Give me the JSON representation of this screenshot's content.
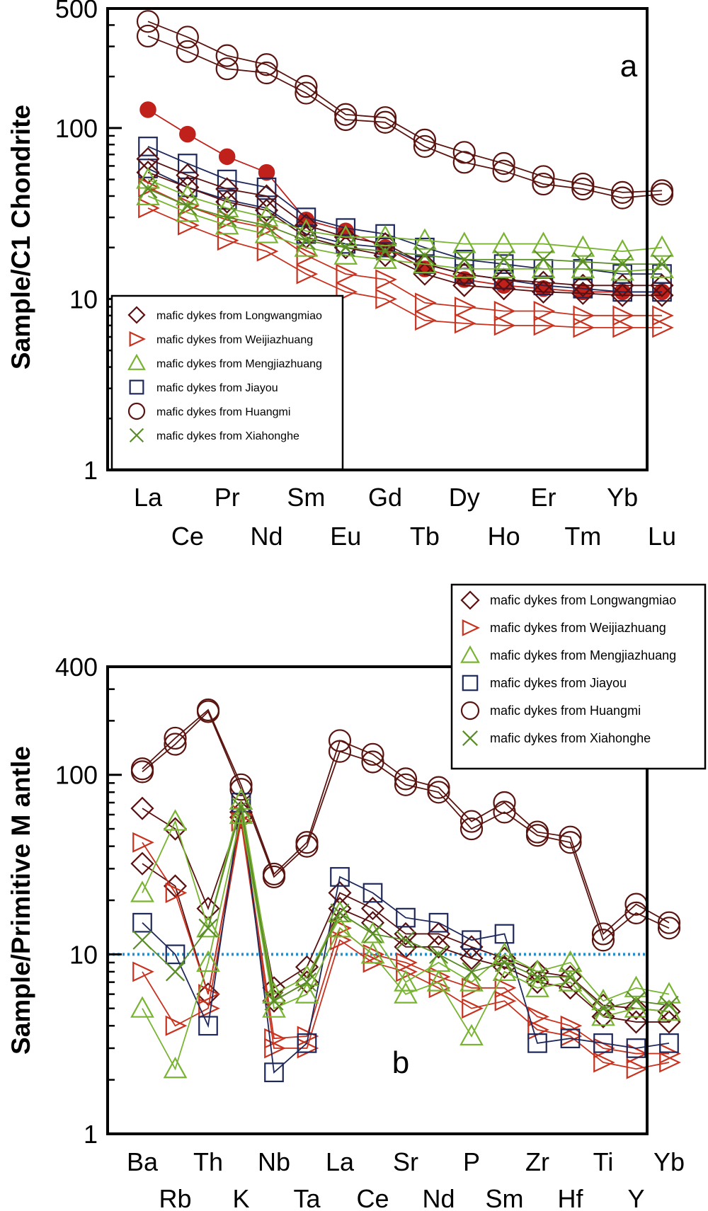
{
  "legend_entries": [
    {
      "label": "mafic dykes from Longwangmiao",
      "marker": "diamond",
      "color": "#5a1010"
    },
    {
      "label": "mafic dykes from Weijiazhuang",
      "marker": "triangle-right",
      "color": "#c8321e"
    },
    {
      "label": "mafic dykes from Mengjiazhuang",
      "marker": "triangle-up",
      "color": "#78b432"
    },
    {
      "label": "mafic dykes from Jiayou",
      "marker": "square",
      "color": "#1e285a"
    },
    {
      "label": "mafic dykes from Huangmi",
      "marker": "circle",
      "color": "#5a1410"
    },
    {
      "label": "mafic dykes from Xiahonghe",
      "marker": "x",
      "color": "#5a8c28"
    }
  ],
  "chart_data": [
    {
      "type": "line",
      "panel_label": "a",
      "title": "",
      "ylabel": "Sample/C1 Chondrite",
      "xlabel": "",
      "yscale": "log",
      "ylim": [
        1,
        500
      ],
      "yticks": [
        "1",
        "10",
        "100",
        "500"
      ],
      "categories": [
        "La",
        "Ce",
        "Pr",
        "Nd",
        "Sm",
        "Eu",
        "Gd",
        "Tb",
        "Dy",
        "Ho",
        "Er",
        "Tm",
        "Yb",
        "Lu"
      ],
      "legend_position": "lower-left",
      "series": [
        {
          "name": "mafic dykes from Huangmi",
          "marker": "circle",
          "color": "#5a1410",
          "values": [
            420,
            340,
            265,
            235,
            175,
            120,
            115,
            85,
            72,
            62,
            52,
            47,
            42,
            43
          ]
        },
        {
          "name": "mafic dykes from Huangmi",
          "marker": "circle",
          "color": "#5a1410",
          "values": [
            345,
            280,
            222,
            210,
            160,
            112,
            108,
            78,
            63,
            56,
            47,
            44,
            39,
            41
          ]
        },
        {
          "marker": "filled-circle",
          "color": "#c0211a",
          "values": [
            128,
            92,
            68,
            55,
            29,
            25,
            20,
            15,
            13,
            12,
            11.5,
            11,
            11,
            11
          ]
        },
        {
          "name": "mafic dykes from Jiayou",
          "marker": "square",
          "color": "#1e285a",
          "values": [
            78,
            62,
            50,
            45,
            30,
            26,
            24,
            20,
            17,
            16,
            15,
            15,
            14,
            14
          ]
        },
        {
          "name": "mafic dykes from Jiayou",
          "marker": "square",
          "color": "#1e285a",
          "values": [
            58,
            45,
            38,
            34,
            24,
            21,
            20,
            16,
            14,
            13,
            12,
            11.5,
            11,
            11
          ]
        },
        {
          "name": "mafic dykes from Longwangmiao",
          "marker": "diamond",
          "color": "#5a1010",
          "values": [
            66,
            53,
            44,
            40,
            27,
            23,
            21,
            16,
            14,
            13,
            12.5,
            12,
            12,
            12
          ]
        },
        {
          "name": "mafic dykes from Longwangmiao",
          "marker": "diamond",
          "color": "#5a1010",
          "values": [
            55,
            45,
            37,
            33,
            23,
            20,
            18,
            14,
            12,
            11.5,
            11,
            10.8,
            10.5,
            10.5
          ]
        },
        {
          "name": "mafic dykes from Weijiazhuang",
          "marker": "triangle-right",
          "color": "#c8321e",
          "values": [
            45,
            35,
            29,
            26,
            18,
            14,
            13,
            9.5,
            9,
            8.5,
            8.5,
            8,
            8,
            8
          ]
        },
        {
          "name": "mafic dykes from Weijiazhuang",
          "marker": "triangle-right",
          "color": "#c8321e",
          "values": [
            34,
            27,
            22,
            19,
            14,
            11,
            10,
            7.5,
            7.2,
            7,
            7,
            6.8,
            6.8,
            6.8
          ]
        },
        {
          "name": "mafic dykes from Mengjiazhuang",
          "marker": "triangle-up",
          "color": "#78b432",
          "values": [
            50,
            40,
            34,
            30,
            25,
            23,
            23,
            22,
            21,
            21,
            21,
            20,
            19,
            20
          ]
        },
        {
          "name": "mafic dykes from Mengjiazhuang",
          "marker": "triangle-up",
          "color": "#78b432",
          "values": [
            40,
            32,
            27,
            24,
            20,
            18,
            17,
            16,
            15,
            15,
            15,
            15,
            14.5,
            15
          ]
        },
        {
          "name": "mafic dykes from Xiahonghe",
          "marker": "x",
          "color": "#5a8c28",
          "values": [
            44,
            35,
            30,
            27,
            22,
            20,
            19,
            18,
            17,
            17,
            17,
            16.5,
            16,
            16
          ]
        }
      ]
    },
    {
      "type": "line",
      "panel_label": "b",
      "title": "",
      "ylabel": "Sample/Primitive M antle",
      "xlabel": "",
      "yscale": "log",
      "ylim": [
        1,
        400
      ],
      "yticks": [
        "1",
        "10",
        "100",
        "400"
      ],
      "categories": [
        "Ba",
        "Rb",
        "Th",
        "K",
        "Nb",
        "Ta",
        "La",
        "Ce",
        "Sr",
        "Nd",
        "P",
        "Sm",
        "Zr",
        "Hf",
        "Ti",
        "Y",
        "Yb"
      ],
      "reference_line": {
        "y": 10,
        "style": "dotted",
        "color": "#1e90d8"
      },
      "legend_position": "top-right",
      "series": [
        {
          "name": "mafic dykes from Huangmi",
          "marker": "circle",
          "color": "#5a1410",
          "values": [
            108,
            160,
            230,
            88,
            28,
            42,
            155,
            130,
            95,
            85,
            55,
            70,
            48,
            45,
            13,
            19,
            15
          ]
        },
        {
          "name": "mafic dykes from Huangmi",
          "marker": "circle",
          "color": "#5a1410",
          "values": [
            104,
            148,
            225,
            83,
            27,
            40,
            135,
            118,
            88,
            80,
            50,
            62,
            46,
            42,
            12,
            17,
            14
          ]
        },
        {
          "name": "mafic dykes from Longwangmiao",
          "marker": "diamond",
          "color": "#5a1010",
          "values": [
            65,
            50,
            18,
            62,
            6.5,
            8.5,
            22,
            18,
            13,
            13,
            11,
            9.5,
            8,
            7.5,
            5.2,
            5,
            4.8
          ]
        },
        {
          "name": "mafic dykes from Longwangmiao",
          "marker": "diamond",
          "color": "#5a1010",
          "values": [
            32,
            24,
            6,
            58,
            5.5,
            7,
            18,
            15,
            11,
            11,
            9.5,
            8.5,
            7,
            6.5,
            4.5,
            4.2,
            4.2
          ]
        },
        {
          "name": "mafic dykes from Weijiazhuang",
          "marker": "triangle-right",
          "color": "#c8321e",
          "values": [
            42,
            22,
            6,
            60,
            3.4,
            3.5,
            14,
            10,
            9,
            7.5,
            6.5,
            6.5,
            4.5,
            4,
            3,
            2.8,
            2.8
          ]
        },
        {
          "name": "mafic dykes from Weijiazhuang",
          "marker": "triangle-right",
          "color": "#c8321e",
          "values": [
            8,
            4,
            5,
            55,
            3,
            3,
            12,
            9,
            8,
            6.5,
            5,
            5.5,
            3.8,
            3.5,
            2.5,
            2.3,
            2.5
          ]
        },
        {
          "name": "mafic dykes from Jiayou",
          "marker": "square",
          "color": "#1e285a",
          "values": [
            15,
            10,
            4,
            70,
            2.2,
            3.2,
            27,
            22,
            16,
            15,
            12,
            13,
            3.2,
            3.4,
            3.2,
            3,
            3.2
          ]
        },
        {
          "name": "mafic dykes from Mengjiazhuang",
          "marker": "triangle-up",
          "color": "#78b432",
          "values": [
            22,
            55,
            14,
            72,
            6,
            7.5,
            17,
            13,
            7,
            9,
            7,
            10,
            8,
            9,
            5.5,
            6.5,
            6
          ]
        },
        {
          "name": "mafic dykes from Mengjiazhuang",
          "marker": "triangle-up",
          "color": "#78b432",
          "values": [
            5,
            2.3,
            9,
            60,
            5,
            6,
            14,
            10,
            6,
            7,
            3.5,
            8,
            6.5,
            7,
            4.5,
            5,
            4.8
          ]
        },
        {
          "name": "mafic dykes from Xiahonghe",
          "marker": "x",
          "color": "#5a8c28",
          "values": [
            12,
            8,
            14,
            66,
            5.5,
            7,
            17,
            13,
            12,
            10,
            8,
            9,
            7.5,
            7.5,
            5,
            5.5,
            5.2
          ]
        }
      ]
    }
  ]
}
